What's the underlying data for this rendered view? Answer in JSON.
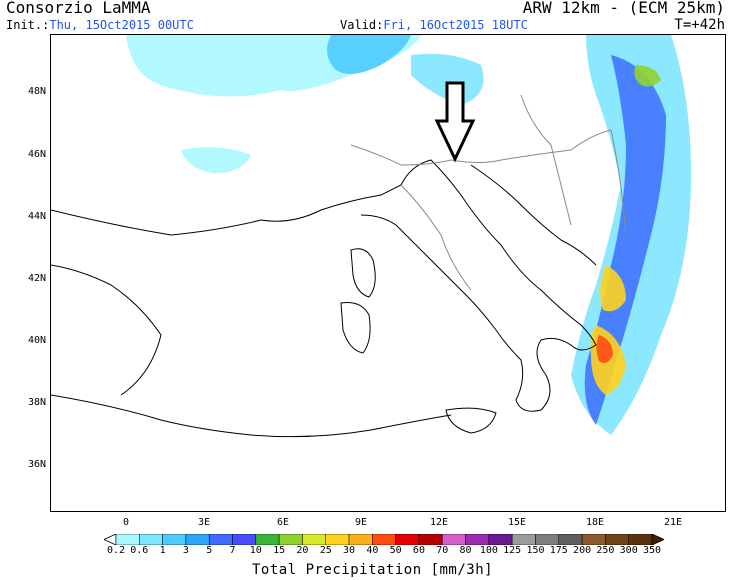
{
  "header": {
    "org": "Consorzio LaMMA",
    "model": "ARW 12km - (ECM 25km)",
    "init_label": "Init.:",
    "init_value": "Thu, 15Oct2015 00UTC",
    "valid_label": "Valid:",
    "valid_value": "Fri, 16Oct2015 18UTC",
    "forecast_step": "T=+42h"
  },
  "map": {
    "lat_labels": [
      "48N",
      "46N",
      "44N",
      "42N",
      "40N",
      "38N",
      "36N"
    ],
    "lon_labels": [
      "0",
      "3E",
      "6E",
      "9E",
      "12E",
      "15E",
      "18E",
      "21E"
    ],
    "annotation_arrow": "down-arrow-icon"
  },
  "colorbar": {
    "title": "Total Precipitation [mm/3h]",
    "values": [
      "0.2",
      "0.6",
      "1",
      "3",
      "5",
      "7",
      "10",
      "15",
      "20",
      "25",
      "30",
      "40",
      "50",
      "60",
      "70",
      "80",
      "100",
      "125",
      "150",
      "175",
      "200",
      "250",
      "300",
      "350"
    ],
    "colors": [
      "#a9f7ff",
      "#7ee6ff",
      "#4fcbff",
      "#2aa6ff",
      "#3c6dff",
      "#4b4bff",
      "#39b639",
      "#8fd12d",
      "#d8e82a",
      "#ffd11d",
      "#ffae1b",
      "#ff4d12",
      "#e60000",
      "#b50000",
      "#d460c8",
      "#9c2cb2",
      "#6a1991",
      "#9c9c9c",
      "#7d7d7d",
      "#5e5e5e",
      "#8a5a2a",
      "#6e4319",
      "#5a320d",
      "#3e2106"
    ]
  }
}
